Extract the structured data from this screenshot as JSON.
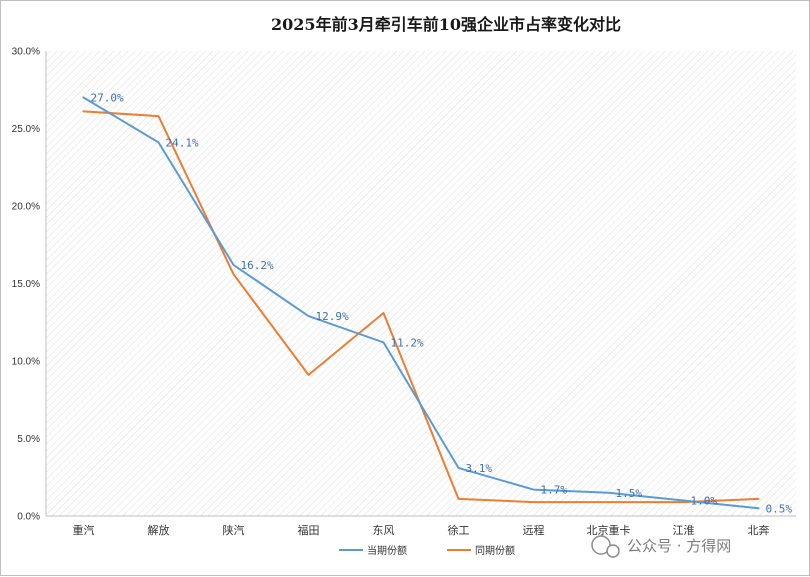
{
  "chart_data": {
    "type": "line",
    "title": "2025年前3月牵引车前10强企业市占率变化对比",
    "categories": [
      "重汽",
      "解放",
      "陕汽",
      "福田",
      "东风",
      "徐工",
      "远程",
      "北京重卡",
      "江淮",
      "北奔"
    ],
    "series": [
      {
        "name": "当期份额",
        "color": "#5b9bd5",
        "values": [
          27.0,
          24.1,
          16.2,
          12.9,
          11.2,
          3.1,
          1.7,
          1.5,
          1.0,
          0.5
        ],
        "labels": [
          "27.0%",
          "24.1%",
          "16.2%",
          "12.9%",
          "11.2%",
          "3.1%",
          "1.7%",
          "1.5%",
          "1.0%",
          "0.5%"
        ]
      },
      {
        "name": "同期份额",
        "color": "#ed7d31",
        "values": [
          26.1,
          25.8,
          15.6,
          9.1,
          13.1,
          1.1,
          0.9,
          0.9,
          0.9,
          1.1
        ]
      }
    ],
    "yticks": [
      "0.0%",
      "5.0%",
      "10.0%",
      "15.0%",
      "20.0%",
      "25.0%",
      "30.0%"
    ],
    "ylim": [
      0,
      30
    ],
    "grid": false,
    "legend": "bottom"
  },
  "watermark": "公众号 · 方得网"
}
